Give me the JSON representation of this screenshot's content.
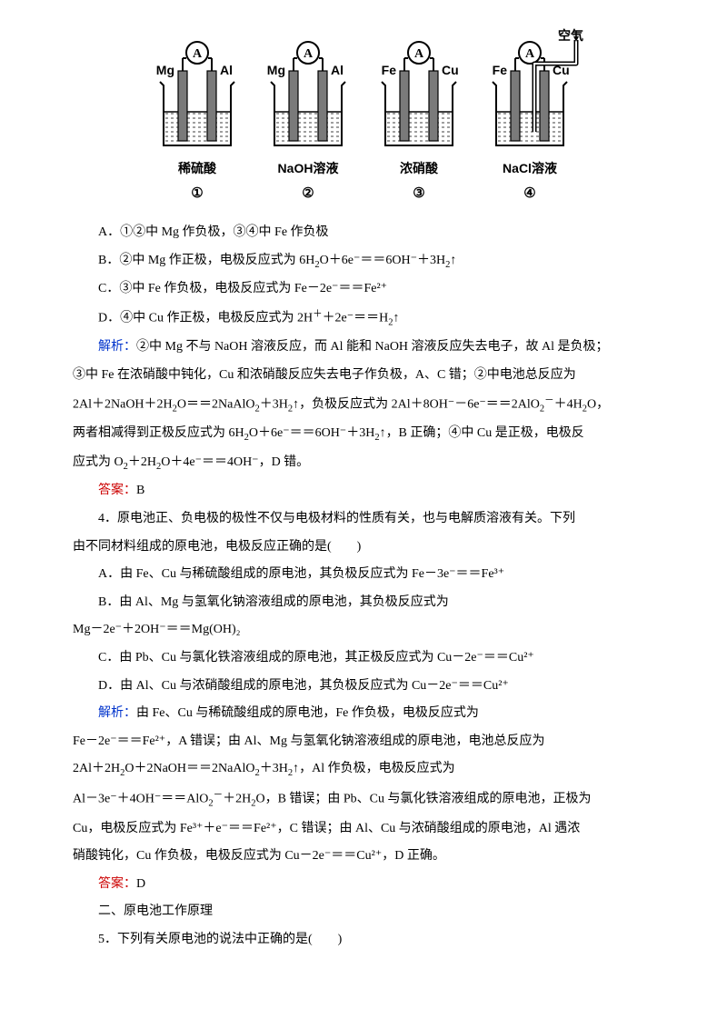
{
  "diagram": {
    "cells": [
      {
        "left_el": "Mg",
        "right_el": "Al",
        "solution": "稀硫酸",
        "num": "①",
        "air": false
      },
      {
        "left_el": "Mg",
        "right_el": "Al",
        "solution": "NaOH溶液",
        "num": "②",
        "air": false
      },
      {
        "left_el": "Fe",
        "right_el": "Cu",
        "solution": "浓硝酸",
        "num": "③",
        "air": false
      },
      {
        "left_el": "Fe",
        "right_el": "Cu",
        "solution": "NaCl溶液",
        "num": "④",
        "air": true
      }
    ],
    "ammeter_label": "A",
    "air_label": "空气",
    "colors": {
      "line": "#000000",
      "electrode": "#7a7a7a",
      "liquid": "#ffffff",
      "background": "#ffffff"
    }
  },
  "options": {
    "A": "A．①②中 Mg 作负极，③④中 Fe 作负极",
    "B_pre": "B．②中 Mg 作正极，电极反应式为 6H",
    "B_post": "↑",
    "C": "C．③中 Fe 作负极，电极反应式为 Fe－2e⁻＝＝Fe²⁺",
    "D_pre": "D．④中 Cu 作正极，电极反应式为 2H",
    "D_post": "↑"
  },
  "analysis1_label": "解析：",
  "analysis1": {
    "l1": "②中 Mg 不与 NaOH 溶液反应，而 Al 能和 NaOH 溶液反应失去电子，故 Al 是负极；",
    "l2": "③中 Fe 在浓硝酸中钝化，Cu 和浓硝酸反应失去电子作负极，A、C 错；②中电池总反应为",
    "l3a": "2Al＋2NaOH＋2H",
    "l3b": "O＝＝2NaAlO",
    "l3c": "＋3H",
    "l3d": "↑，负极反应式为 2Al＋8OH⁻－6e⁻＝＝2AlO",
    "l3e": "＋4H",
    "l3f": "O，",
    "l4a": "两者相减得到正极反应式为 6H",
    "l4b": "O＋6e⁻＝＝6OH⁻＋3H",
    "l4c": "↑，B 正确；④中 Cu 是正极，电极反",
    "l5a": "应式为 O",
    "l5b": "＋2H",
    "l5c": "O＋4e⁻＝＝4OH⁻，D 错。"
  },
  "answer1_label": "答案：",
  "answer1": "B",
  "q4": {
    "l1": "4．原电池正、负电极的极性不仅与电极材料的性质有关，也与电解质溶液有关。下列",
    "l2": "由不同材料组成的原电池，电极反应正确的是(　　)",
    "A": "A．由 Fe、Cu 与稀硫酸组成的原电池，其负极反应式为 Fe－3e⁻＝＝Fe³⁺",
    "B1": "B．由 Al、Mg 与氢氧化钠溶液组成的原电池，其负极反应式为",
    "B2": "Mg－2e⁻＋2OH⁻＝＝Mg(OH)₂",
    "C": "C．由 Pb、Cu 与氯化铁溶液组成的原电池，其正极反应式为 Cu－2e⁻＝＝Cu²⁺",
    "D": "D．由 Al、Cu 与浓硝酸组成的原电池，其负极反应式为 Cu－2e⁻＝＝Cu²⁺"
  },
  "analysis2_label": "解析：",
  "analysis2": {
    "l1": "由 Fe、Cu 与稀硫酸组成的原电池，Fe 作负极，电极反应式为",
    "l2": "Fe－2e⁻＝＝Fe²⁺，A 错误；由 Al、Mg 与氢氧化钠溶液组成的原电池，电池总反应为",
    "l3a": "2Al＋2H",
    "l3b": "O＋2NaOH＝＝2NaAlO",
    "l3c": "＋3H",
    "l3d": "↑，Al 作负极，电极反应式为",
    "l4a": "Al－3e⁻＋4OH⁻＝＝AlO",
    "l4b": "＋2H",
    "l4c": "O，B 错误；由 Pb、Cu 与氯化铁溶液组成的原电池，正极为",
    "l5": "Cu，电极反应式为 Fe³⁺＋e⁻＝＝Fe²⁺，C 错误；由 Al、Cu 与浓硝酸组成的原电池，Al 遇浓",
    "l6": "硝酸钝化，Cu 作负极，电极反应式为 Cu－2e⁻＝＝Cu²⁺，D 正确。"
  },
  "answer2_label": "答案：",
  "answer2": "D",
  "section2": "二、原电池工作原理",
  "q5": "5．下列有关原电池的说法中正确的是(　　)"
}
